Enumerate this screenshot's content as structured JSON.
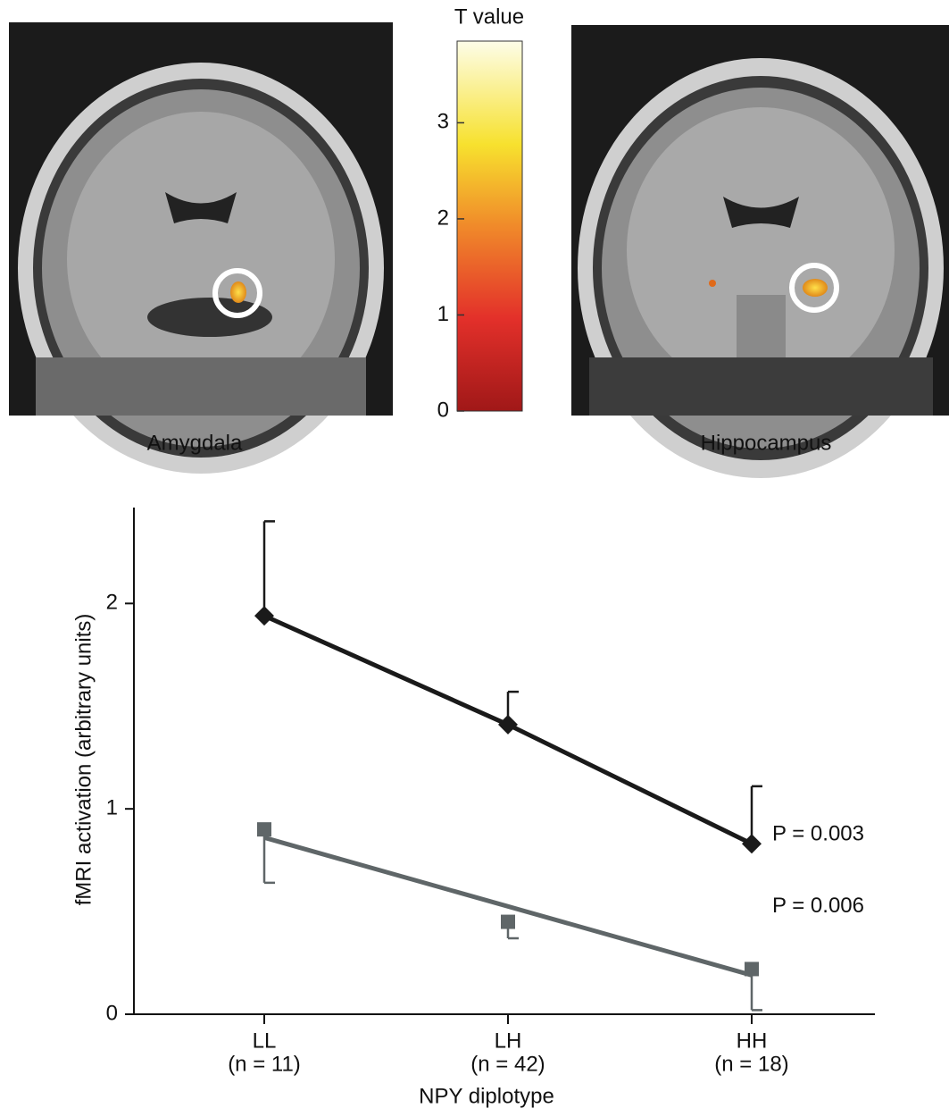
{
  "figure": {
    "images": [
      {
        "label": "Amygdala"
      },
      {
        "label": "Hippocampus"
      }
    ],
    "colorbar": {
      "label": "T value",
      "lim": [
        0,
        3.85
      ],
      "ticks": [
        0,
        1,
        2,
        3
      ]
    }
  },
  "chart_data": {
    "type": "line",
    "categories": [
      "LL",
      "LH",
      "HH"
    ],
    "category_notes": [
      "(n = 11)",
      "(n = 42)",
      "(n = 18)"
    ],
    "x_label": "NPY diplotype",
    "y_label": "fMRI activation (arbitrary units)",
    "ylim": [
      0,
      2.48
    ],
    "yticks": [
      0,
      1,
      2
    ],
    "series": [
      {
        "color": "#1a1a1a",
        "marker": "diamond",
        "values": [
          1.94,
          1.41,
          0.83
        ],
        "errors": [
          0.46,
          0.16,
          0.28
        ],
        "error_direction": "up",
        "annotation": "P = 0.003"
      },
      {
        "color": "#5f6668",
        "marker": "square",
        "values": [
          0.9,
          0.45,
          0.22
        ],
        "errors": [
          0.26,
          0.08,
          0.2
        ],
        "error_direction": "down",
        "fit_values": [
          0.86,
          0.525,
          0.19
        ],
        "annotation": "P = 0.006"
      }
    ]
  }
}
